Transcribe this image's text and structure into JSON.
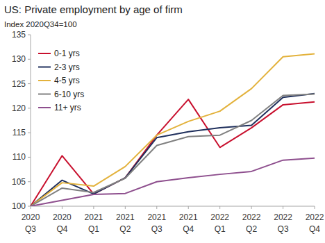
{
  "chart_data": {
    "type": "line",
    "title": "US: Private employment by age of firm",
    "subtitle": "Index 2020Q34=100",
    "categories": [
      "2020 Q3",
      "2020 Q4",
      "2021 Q1",
      "2021 Q2",
      "2021 Q3",
      "2021 Q4",
      "2022 Q1",
      "2022 Q2",
      "2022 Q3",
      "2022 Q4"
    ],
    "series": [
      {
        "name": "0-1 yrs",
        "color": "#c8102e",
        "values": [
          100,
          110.3,
          102.5,
          105.8,
          114.5,
          121.8,
          112,
          116,
          120.7,
          121.3
        ]
      },
      {
        "name": "2-3 yrs",
        "color": "#1f2f5c",
        "values": [
          100,
          105.3,
          102.5,
          105.8,
          114,
          115.2,
          116,
          116.5,
          122.2,
          123
        ]
      },
      {
        "name": "4-5 yrs",
        "color": "#e3b23c",
        "values": [
          100,
          104.8,
          104.1,
          108.1,
          114.5,
          117.3,
          119.4,
          124,
          130.5,
          131.1
        ]
      },
      {
        "name": "6-10 yrs",
        "color": "#808080",
        "values": [
          100,
          103.7,
          102.8,
          105.7,
          112.4,
          114.2,
          114.5,
          117.5,
          122.6,
          122.9
        ]
      },
      {
        "name": "11+ yrs",
        "color": "#8e4f8e",
        "values": [
          100,
          101.2,
          102.4,
          102.6,
          105,
          105.8,
          106.5,
          107.1,
          109.4,
          109.8
        ]
      }
    ],
    "ylim": [
      100,
      135
    ],
    "yticks": [
      100,
      105,
      110,
      115,
      120,
      125,
      130,
      135
    ],
    "grid": false,
    "legend": "upper left"
  }
}
